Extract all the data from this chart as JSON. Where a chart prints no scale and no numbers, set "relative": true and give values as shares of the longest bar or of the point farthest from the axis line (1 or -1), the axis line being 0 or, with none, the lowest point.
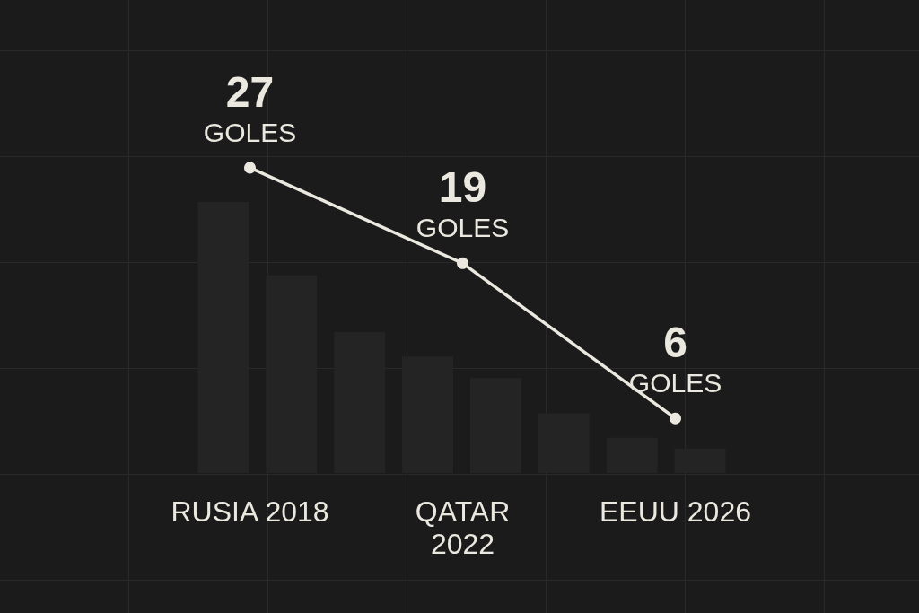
{
  "chart_data": [
    {
      "type": "bar",
      "relative": true,
      "categories": [
        null,
        null,
        null,
        null,
        null,
        null,
        null,
        null
      ],
      "values": [
        1,
        0.73,
        0.52,
        0.43,
        0.35,
        0.22,
        0.13,
        0.09
      ],
      "color": "#242425",
      "tick_labels": false
    },
    {
      "type": "line",
      "categories": [
        "RUSIA 2018",
        "QATAR\n2022",
        "EEUU 2026"
      ],
      "values": [
        27,
        19,
        6
      ],
      "value_labels": [
        "27\nGOLES",
        "19\nGOLES",
        "6\nGOLES"
      ],
      "color": "#ebe8df",
      "marker": "circle",
      "line_style": "solid",
      "tick_labels": "x"
    }
  ]
}
